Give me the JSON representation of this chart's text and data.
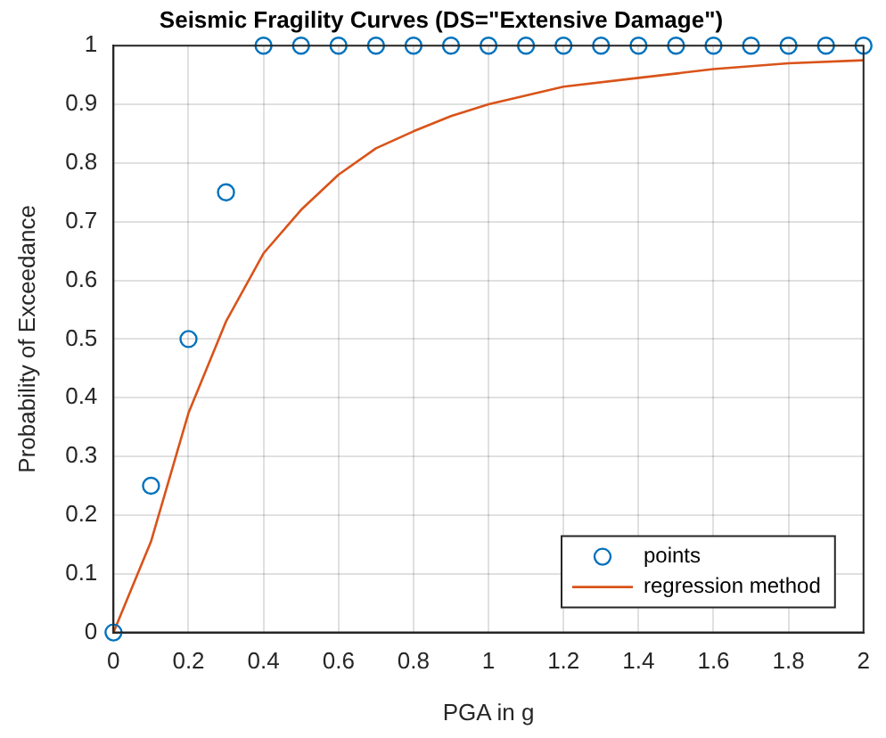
{
  "chart_data": {
    "type": "scatter",
    "title": "Seismic Fragility Curves (DS=\"Extensive Damage\")",
    "xlabel": "PGA in g",
    "ylabel": "Probability of Exceedance",
    "xlim": [
      0,
      2
    ],
    "xticks": [
      0,
      0.2,
      0.4,
      0.6,
      0.8,
      1,
      1.2,
      1.4,
      1.6,
      1.8,
      2
    ],
    "ylim": [
      0,
      1
    ],
    "yticks": [
      0,
      0.1,
      0.2,
      0.3,
      0.4,
      0.5,
      0.6,
      0.7,
      0.8,
      0.9,
      1
    ],
    "grid": true,
    "legend": "bottom right",
    "series": [
      {
        "name": "points",
        "type": "scatter",
        "marker": "circle",
        "color": "#0072bd",
        "x": [
          0,
          0.1,
          0.2,
          0.3,
          0.4,
          0.5,
          0.6,
          0.7,
          0.8,
          0.9,
          1,
          1.1,
          1.2,
          1.3,
          1.4,
          1.5,
          1.6,
          1.7,
          1.8,
          1.9,
          2
        ],
        "values": [
          0,
          0.25,
          0.5,
          0.75,
          1,
          1,
          1,
          1,
          1,
          1,
          1,
          1,
          1,
          1,
          1,
          1,
          1,
          1,
          1,
          1,
          1
        ]
      },
      {
        "name": "regression method",
        "type": "line",
        "marker": "none",
        "line_style": "solid",
        "color": "#d95319",
        "x": [
          0,
          0.1,
          0.2,
          0.3,
          0.4,
          0.5,
          0.6,
          0.7,
          0.8,
          0.9,
          1,
          1.2,
          1.4,
          1.6,
          1.8,
          2
        ],
        "values": [
          0,
          0.155,
          0.374,
          0.53,
          0.646,
          0.72,
          0.78,
          0.825,
          0.854,
          0.88,
          0.9,
          0.93,
          0.945,
          0.96,
          0.97,
          0.975
        ]
      }
    ]
  }
}
